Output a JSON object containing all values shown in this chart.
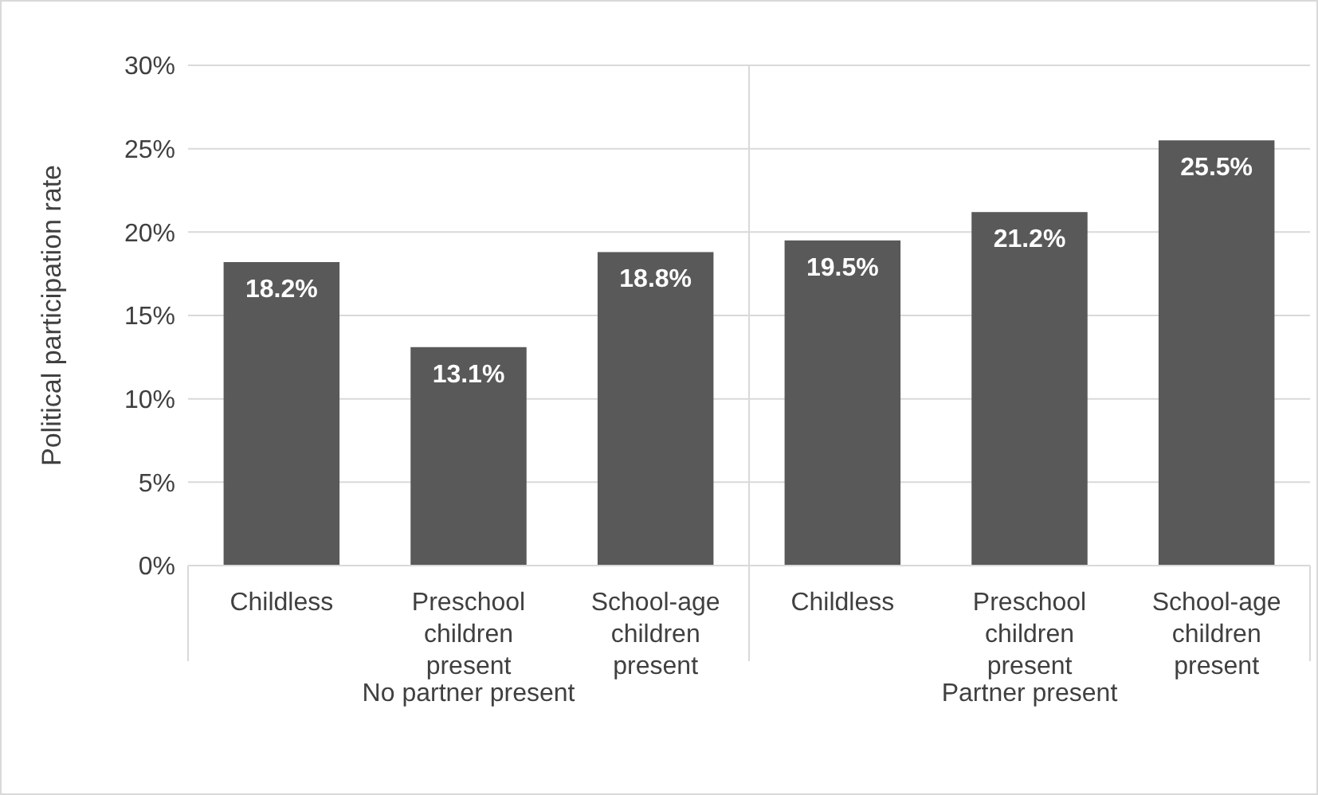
{
  "chart_data": {
    "type": "bar",
    "ylabel": "Political participation rate",
    "categories": [
      "Childless",
      "Preschool children present",
      "School-age children present",
      "Childless",
      "Preschool children present",
      "School-age children present"
    ],
    "values": [
      18.2,
      13.1,
      18.8,
      19.5,
      21.2,
      25.5
    ],
    "value_labels": [
      "18.2%",
      "13.1%",
      "18.8%",
      "19.5%",
      "21.2%",
      "25.5%"
    ],
    "color": "#595959",
    "ylim": [
      0,
      30
    ],
    "yticks": [
      {
        "value": 0,
        "label": "0%"
      },
      {
        "value": 5,
        "label": "5%"
      },
      {
        "value": 10,
        "label": "10%"
      },
      {
        "value": 15,
        "label": "15%"
      },
      {
        "value": 20,
        "label": "20%"
      },
      {
        "value": 25,
        "label": "25%"
      },
      {
        "value": 30,
        "label": "30%"
      }
    ],
    "grid": "y",
    "annotations": [
      "No partner present",
      "Partner present"
    ]
  }
}
